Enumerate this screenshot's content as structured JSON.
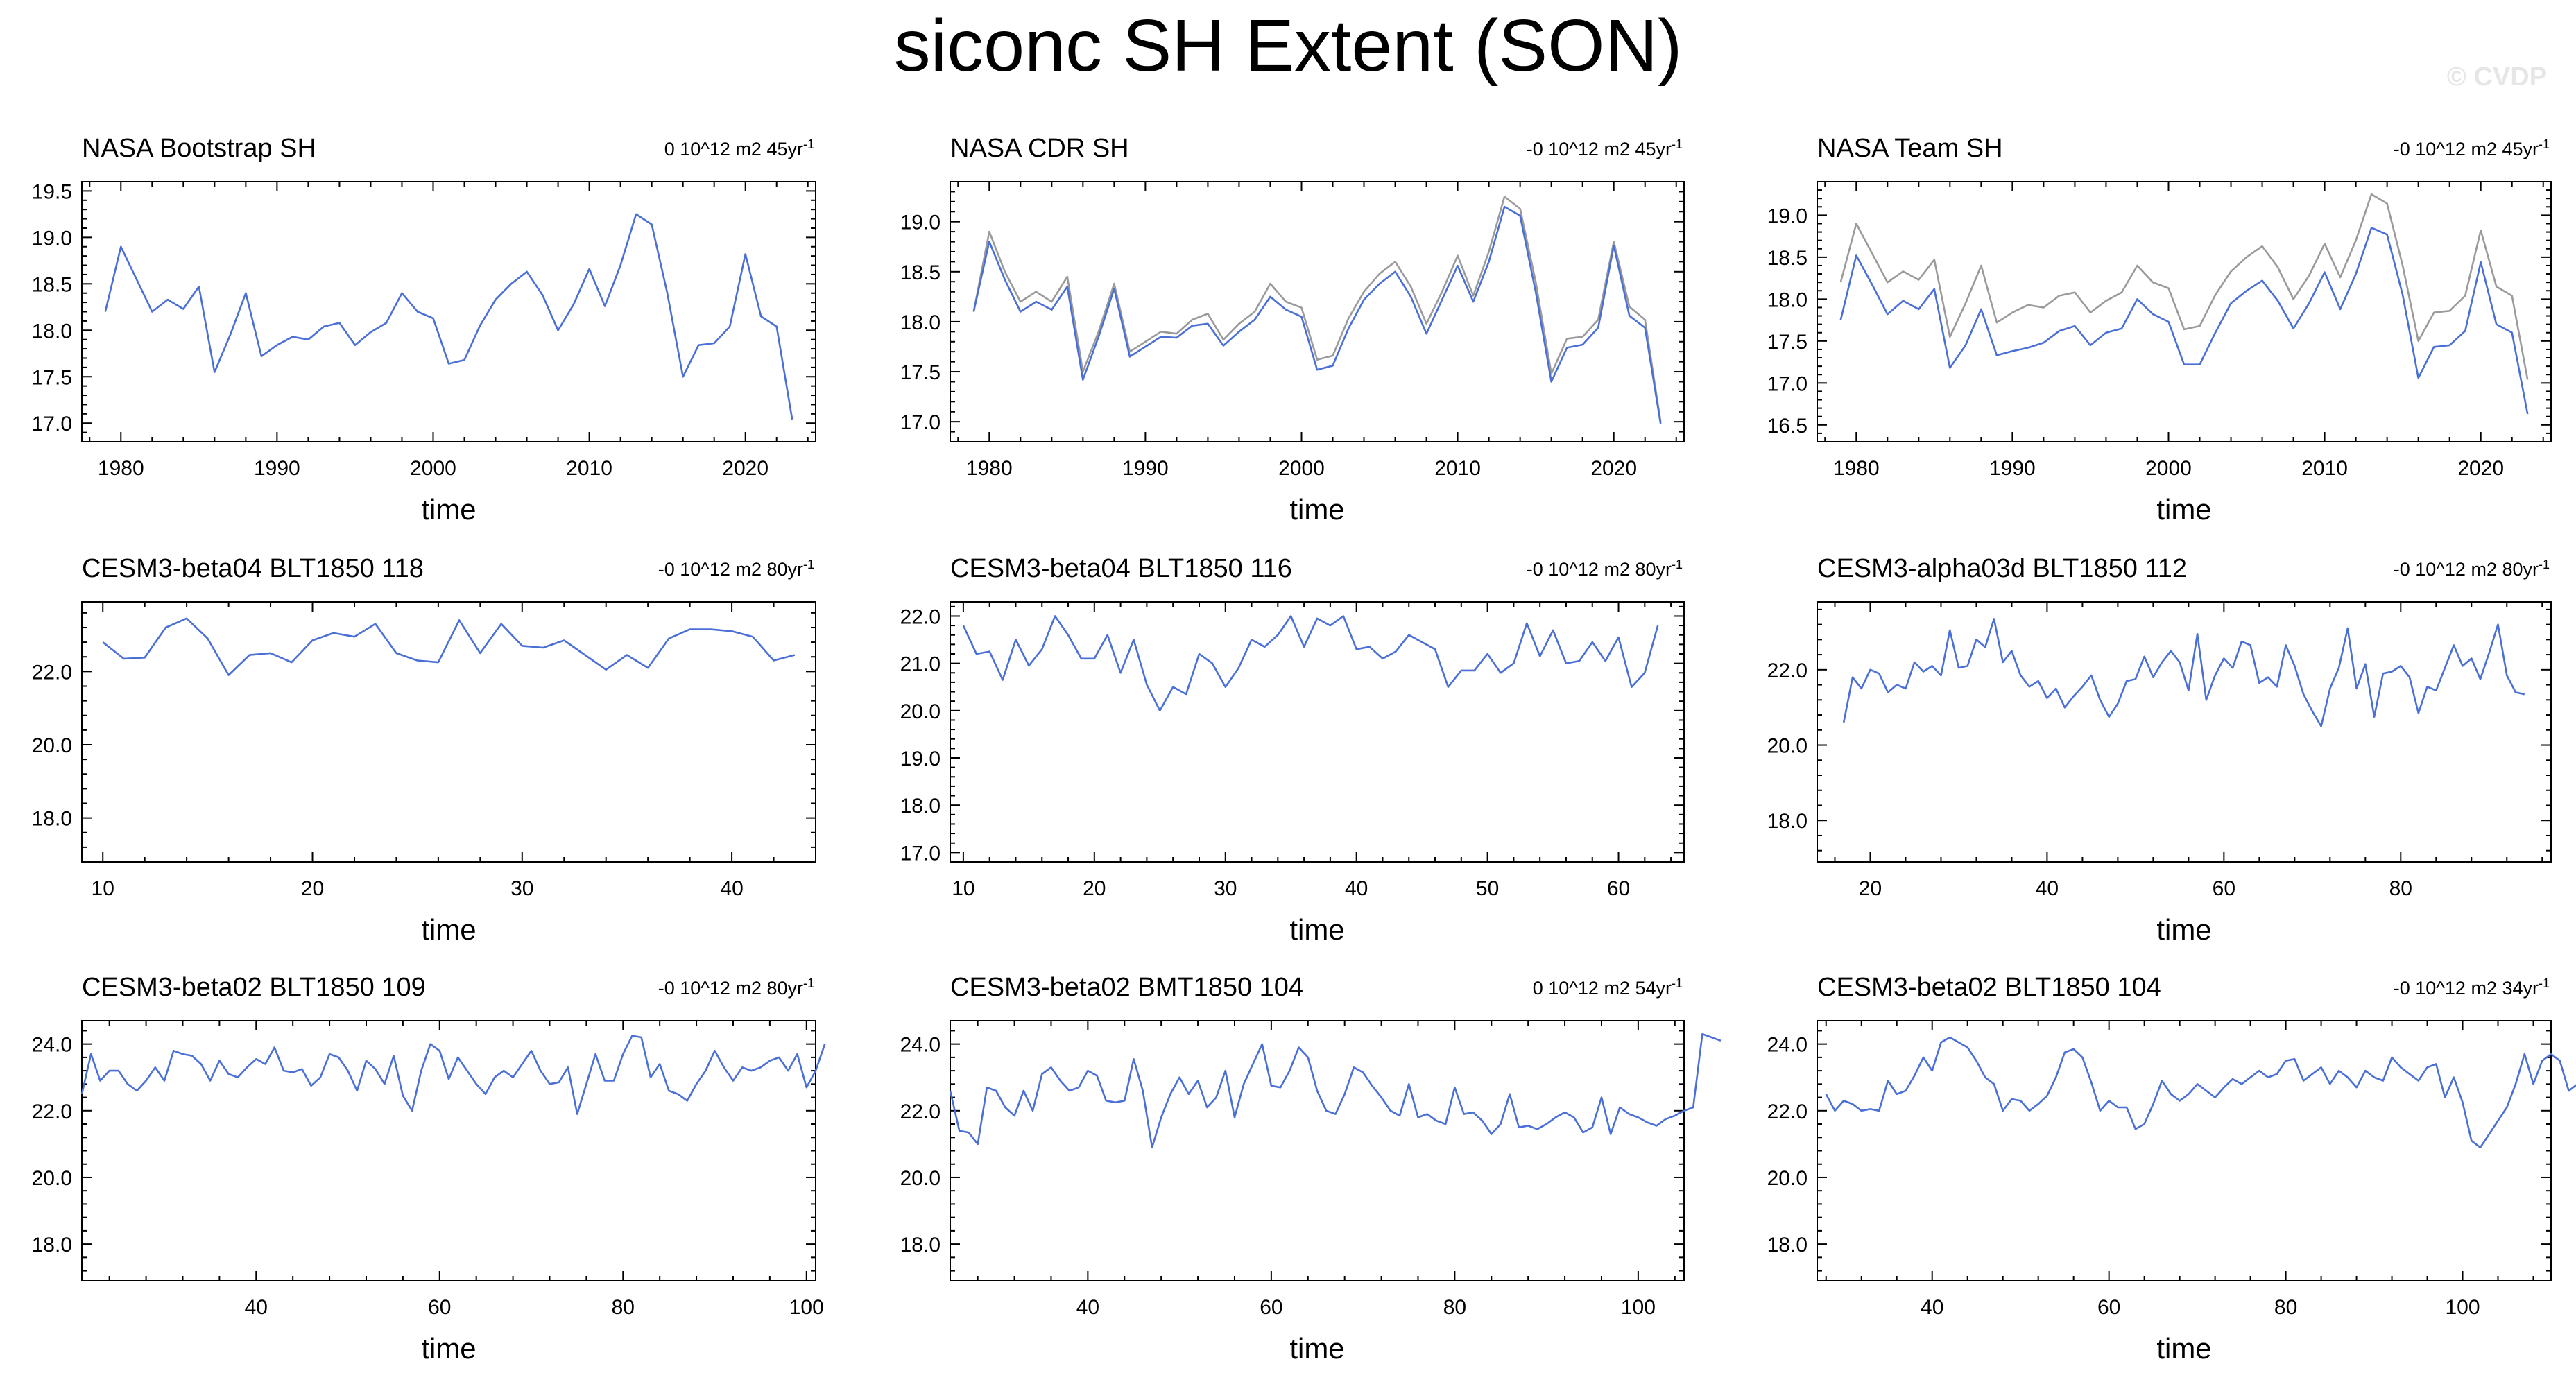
{
  "title": "siconc SH Extent (SON)",
  "watermark": "© CVDP",
  "colors": {
    "model": "#4a6fd6",
    "reference": "#9a9a9a",
    "axis": "#000000"
  },
  "chart_data": [
    {
      "type": "line",
      "title": "NASA Bootstrap SH",
      "trend_label": "0 10^12 m2 45yr",
      "trend_exp": "-1",
      "xlabel": "time",
      "xlim": [
        1977.5,
        2024.5
      ],
      "ylim": [
        16.8,
        19.6
      ],
      "xticks": [
        1980,
        1990,
        2000,
        2010,
        2020
      ],
      "yticks": [
        "17.0",
        "17.5",
        "18.0",
        "18.5",
        "19.0",
        "19.5"
      ],
      "x_start": 1979,
      "series": [
        {
          "values": [
            18.2,
            18.9,
            18.55,
            18.2,
            18.33,
            18.23,
            18.47,
            17.55,
            17.95,
            18.4,
            17.72,
            17.84,
            17.93,
            17.9,
            18.04,
            18.08,
            17.84,
            17.98,
            18.08,
            18.4,
            18.2,
            18.13,
            17.64,
            17.68,
            18.05,
            18.33,
            18.5,
            18.63,
            18.38,
            18.0,
            18.28,
            18.66,
            18.26,
            18.7,
            19.25,
            19.14,
            18.4,
            17.5,
            17.84,
            17.86,
            18.04,
            18.82,
            18.15,
            18.04,
            17.04
          ]
        }
      ]
    },
    {
      "type": "line",
      "title": "NASA CDR SH",
      "trend_label": "-0 10^12 m2 45yr",
      "trend_exp": "-1",
      "xlabel": "time",
      "xlim": [
        1977.5,
        2024.5
      ],
      "ylim": [
        16.8,
        19.4
      ],
      "xticks": [
        1980,
        1990,
        2000,
        2010,
        2020
      ],
      "yticks": [
        "17.0",
        "17.5",
        "18.0",
        "18.5",
        "19.0"
      ],
      "x_start": 1979,
      "series": [
        {
          "values": [
            18.1,
            18.9,
            18.5,
            18.2,
            18.3,
            18.2,
            18.45,
            17.5,
            17.9,
            18.38,
            17.7,
            17.8,
            17.9,
            17.88,
            18.02,
            18.08,
            17.82,
            17.98,
            18.1,
            18.38,
            18.2,
            18.14,
            17.62,
            17.66,
            18.03,
            18.3,
            18.48,
            18.6,
            18.35,
            17.98,
            18.3,
            18.66,
            18.26,
            18.7,
            19.25,
            19.13,
            18.4,
            17.48,
            17.83,
            17.85,
            18.02,
            18.8,
            18.15,
            18.02,
            17.0
          ]
        },
        {
          "values": [
            18.1,
            18.8,
            18.42,
            18.1,
            18.2,
            18.12,
            18.35,
            17.42,
            17.85,
            18.33,
            17.65,
            17.75,
            17.85,
            17.84,
            17.96,
            17.98,
            17.76,
            17.9,
            18.02,
            18.25,
            18.12,
            18.05,
            17.52,
            17.56,
            17.93,
            18.22,
            18.38,
            18.5,
            18.25,
            17.88,
            18.22,
            18.56,
            18.2,
            18.6,
            19.15,
            19.06,
            18.3,
            17.4,
            17.74,
            17.77,
            17.94,
            18.76,
            18.06,
            17.94,
            16.98
          ]
        }
      ]
    },
    {
      "type": "line",
      "title": "NASA Team SH",
      "trend_label": "-0 10^12 m2 45yr",
      "trend_exp": "-1",
      "xlabel": "time",
      "xlim": [
        1977.5,
        2024.5
      ],
      "ylim": [
        16.3,
        19.4
      ],
      "xticks": [
        1980,
        1990,
        2000,
        2010,
        2020
      ],
      "yticks": [
        "16.5",
        "17.0",
        "17.5",
        "18.0",
        "18.5",
        "19.0"
      ],
      "x_start": 1979,
      "series": [
        {
          "values": [
            18.2,
            18.9,
            18.55,
            18.2,
            18.33,
            18.23,
            18.47,
            17.55,
            17.95,
            18.4,
            17.72,
            17.84,
            17.93,
            17.9,
            18.04,
            18.08,
            17.84,
            17.98,
            18.08,
            18.4,
            18.2,
            18.13,
            17.64,
            17.68,
            18.05,
            18.33,
            18.5,
            18.63,
            18.38,
            18.0,
            18.28,
            18.66,
            18.26,
            18.7,
            19.25,
            19.14,
            18.4,
            17.5,
            17.84,
            17.86,
            18.04,
            18.82,
            18.15,
            18.04,
            17.04
          ]
        },
        {
          "values": [
            17.75,
            18.52,
            18.18,
            17.82,
            17.98,
            17.88,
            18.12,
            17.18,
            17.45,
            17.88,
            17.33,
            17.38,
            17.42,
            17.48,
            17.62,
            17.68,
            17.45,
            17.6,
            17.65,
            18.0,
            17.82,
            17.73,
            17.22,
            17.22,
            17.6,
            17.95,
            18.1,
            18.22,
            17.98,
            17.65,
            17.95,
            18.32,
            17.88,
            18.3,
            18.85,
            18.77,
            18.05,
            17.06,
            17.43,
            17.45,
            17.62,
            18.44,
            17.7,
            17.6,
            16.63
          ]
        }
      ]
    },
    {
      "type": "line",
      "title": "CESM3-beta04 BLT1850 118",
      "trend_label": "-0 10^12 m2 80yr",
      "trend_exp": "-1",
      "xlabel": "time",
      "xlim": [
        9.0,
        44.0
      ],
      "ylim": [
        16.8,
        23.9
      ],
      "xticks": [
        10,
        20,
        30,
        40
      ],
      "yticks": [
        "18.0",
        "20.0",
        "22.0"
      ],
      "x_start": 10,
      "series": [
        {
          "values": [
            22.8,
            22.35,
            22.38,
            23.2,
            23.45,
            22.9,
            21.9,
            22.45,
            22.5,
            22.25,
            22.85,
            23.05,
            22.95,
            23.3,
            22.5,
            22.3,
            22.25,
            23.4,
            22.5,
            23.3,
            22.7,
            22.65,
            22.85,
            22.45,
            22.05,
            22.45,
            22.1,
            22.9,
            23.15,
            23.15,
            23.1,
            22.95,
            22.3,
            22.45
          ]
        }
      ]
    },
    {
      "type": "line",
      "title": "CESM3-beta04 BLT1850 116",
      "trend_label": "-0 10^12 m2 80yr",
      "trend_exp": "-1",
      "xlabel": "time",
      "xlim": [
        9.0,
        65.0
      ],
      "ylim": [
        16.8,
        22.3
      ],
      "xticks": [
        10,
        20,
        30,
        40,
        50,
        60
      ],
      "yticks": [
        "17.0",
        "18.0",
        "19.0",
        "20.0",
        "21.0",
        "22.0"
      ],
      "x_start": 10,
      "series": [
        {
          "values": [
            21.8,
            21.2,
            21.25,
            20.65,
            21.5,
            20.95,
            21.3,
            22.0,
            21.6,
            21.1,
            21.1,
            21.6,
            20.8,
            21.5,
            20.55,
            20.0,
            20.5,
            20.35,
            21.2,
            21.0,
            20.5,
            20.9,
            21.5,
            21.35,
            21.6,
            22.0,
            21.35,
            21.95,
            21.8,
            22.0,
            21.3,
            21.35,
            21.1,
            21.25,
            21.6,
            21.45,
            21.3,
            20.5,
            20.85,
            20.85,
            21.2,
            20.8,
            21.0,
            21.85,
            21.15,
            21.7,
            21.0,
            21.05,
            21.45,
            21.05,
            21.55,
            20.5,
            20.8,
            21.8
          ]
        }
      ]
    },
    {
      "type": "line",
      "title": "CESM3-alpha03d BLT1850 112",
      "trend_label": "-0 10^12 m2 80yr",
      "trend_exp": "-1",
      "xlabel": "time",
      "xlim": [
        14.0,
        97.0
      ],
      "ylim": [
        16.9,
        23.8
      ],
      "xticks": [
        20,
        40,
        60,
        80
      ],
      "yticks": [
        "18.0",
        "20.0",
        "22.0"
      ],
      "x_start": 17,
      "series": [
        {
          "values": [
            20.6,
            21.8,
            21.5,
            22.0,
            21.9,
            21.4,
            21.6,
            21.5,
            22.2,
            21.95,
            22.1,
            21.85,
            23.05,
            22.05,
            22.1,
            22.8,
            22.6,
            23.35,
            22.2,
            22.5,
            21.85,
            21.55,
            21.7,
            21.25,
            21.5,
            21.0,
            21.3,
            21.55,
            21.85,
            21.2,
            20.75,
            21.1,
            21.7,
            21.75,
            22.35,
            21.8,
            22.2,
            22.5,
            22.2,
            21.45,
            22.95,
            21.2,
            21.85,
            22.3,
            22.05,
            22.75,
            22.65,
            21.65,
            21.8,
            21.55,
            22.65,
            22.1,
            21.35,
            20.9,
            20.5,
            21.5,
            22.05,
            23.1,
            21.5,
            22.15,
            20.75,
            21.9,
            21.95,
            22.1,
            21.8,
            20.85,
            21.55,
            21.45,
            22.05,
            22.65,
            22.1,
            22.3,
            21.75,
            22.45,
            23.2,
            21.85,
            21.4,
            21.35
          ]
        }
      ]
    },
    {
      "type": "line",
      "title": "CESM3-beta02 BLT1850 109",
      "trend_label": "-0 10^12 m2 80yr",
      "trend_exp": "-1",
      "xlabel": "time",
      "xlim": [
        21.0,
        101.0
      ],
      "ylim": [
        16.9,
        24.7
      ],
      "xticks": [
        40,
        60,
        80,
        100
      ],
      "yticks": [
        "18.0",
        "20.0",
        "22.0",
        "24.0"
      ],
      "x_start": 21,
      "series": [
        {
          "values": [
            22.5,
            23.7,
            22.9,
            23.2,
            23.2,
            22.8,
            22.6,
            22.9,
            23.3,
            22.9,
            23.8,
            23.7,
            23.65,
            23.4,
            22.9,
            23.5,
            23.1,
            23.0,
            23.3,
            23.55,
            23.4,
            23.9,
            23.2,
            23.15,
            23.25,
            22.75,
            23.0,
            23.7,
            23.6,
            23.2,
            22.6,
            23.5,
            23.25,
            22.8,
            23.65,
            22.45,
            22.0,
            23.2,
            24.0,
            23.8,
            22.95,
            23.6,
            23.2,
            22.8,
            22.5,
            23.0,
            23.2,
            23.0,
            23.4,
            23.8,
            23.2,
            22.8,
            22.85,
            23.3,
            21.9,
            22.8,
            23.7,
            22.9,
            22.9,
            23.7,
            24.25,
            24.2,
            23.0,
            23.4,
            22.6,
            22.5,
            22.3,
            22.8,
            23.2,
            23.8,
            23.3,
            22.9,
            23.3,
            23.2,
            23.3,
            23.5,
            23.6,
            23.2,
            23.7,
            22.7,
            23.2,
            24.0
          ]
        }
      ]
    },
    {
      "type": "line",
      "title": "CESM3-beta02 BMT1850 104",
      "trend_label": "0 10^12 m2 54yr",
      "trend_exp": "-1",
      "xlabel": "time",
      "xlim": [
        25.0,
        105.0
      ],
      "ylim": [
        16.9,
        24.7
      ],
      "xticks": [
        40,
        60,
        80,
        100
      ],
      "yticks": [
        "18.0",
        "20.0",
        "22.0",
        "24.0"
      ],
      "x_start": 25,
      "series": [
        {
          "values": [
            22.6,
            21.4,
            21.35,
            21.0,
            22.7,
            22.6,
            22.1,
            21.85,
            22.6,
            22.0,
            23.1,
            23.3,
            22.9,
            22.6,
            22.7,
            23.2,
            23.05,
            22.3,
            22.25,
            22.3,
            23.55,
            22.6,
            20.9,
            21.8,
            22.5,
            23.0,
            22.5,
            22.9,
            22.1,
            22.4,
            23.2,
            21.8,
            22.8,
            23.4,
            24.0,
            22.75,
            22.7,
            23.2,
            23.9,
            23.6,
            22.6,
            22.0,
            21.9,
            22.5,
            23.3,
            23.15,
            22.75,
            22.4,
            22.0,
            21.85,
            22.8,
            21.8,
            21.9,
            21.7,
            21.6,
            22.7,
            21.9,
            21.95,
            21.7,
            21.3,
            21.6,
            22.5,
            21.5,
            21.55,
            21.45,
            21.6,
            21.8,
            21.95,
            21.8,
            21.35,
            21.5,
            22.4,
            21.3,
            22.1,
            21.9,
            21.8,
            21.65,
            21.55,
            21.75,
            21.85,
            22.0,
            22.1,
            24.3,
            24.2,
            24.1
          ]
        }
      ]
    },
    {
      "type": "line",
      "title": "CESM3-beta02 BLT1850 104",
      "trend_label": "-0 10^12 m2 34yr",
      "trend_exp": "-1",
      "xlabel": "time",
      "xlim": [
        27.0,
        110.0
      ],
      "ylim": [
        16.9,
        24.7
      ],
      "xticks": [
        40,
        60,
        80,
        100
      ],
      "yticks": [
        "18.0",
        "20.0",
        "22.0",
        "24.0"
      ],
      "x_start": 28,
      "series": [
        {
          "values": [
            22.5,
            22.0,
            22.3,
            22.2,
            22.0,
            22.05,
            22.0,
            22.9,
            22.5,
            22.6,
            23.05,
            23.6,
            23.2,
            24.05,
            24.2,
            24.05,
            23.9,
            23.5,
            23.0,
            22.8,
            22.0,
            22.35,
            22.3,
            22.0,
            22.2,
            22.45,
            23.0,
            23.75,
            23.85,
            23.6,
            22.85,
            22.0,
            22.3,
            22.1,
            22.1,
            21.45,
            21.6,
            22.2,
            22.9,
            22.5,
            22.3,
            22.5,
            22.8,
            22.6,
            22.4,
            22.7,
            22.95,
            22.8,
            23.0,
            23.2,
            23.0,
            23.1,
            23.5,
            23.55,
            22.9,
            23.1,
            23.3,
            22.8,
            23.2,
            23.0,
            22.7,
            23.2,
            23.0,
            22.9,
            23.6,
            23.3,
            23.1,
            22.9,
            23.3,
            23.4,
            22.4,
            23.0,
            22.25,
            21.1,
            20.9,
            21.3,
            21.7,
            22.1,
            22.8,
            23.7,
            22.8,
            23.5,
            23.7,
            23.5,
            22.6,
            22.8
          ]
        }
      ]
    }
  ]
}
